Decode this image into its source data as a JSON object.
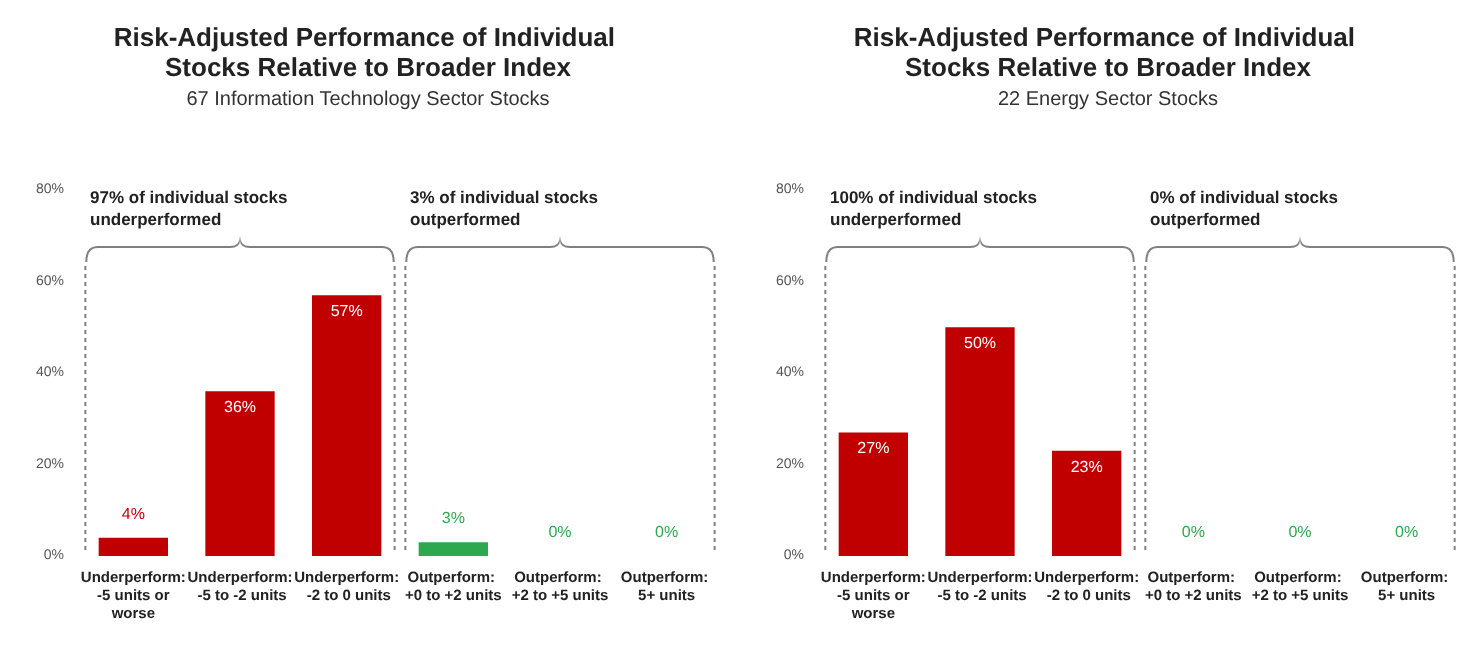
{
  "chart_data": [
    {
      "type": "bar",
      "title": "Risk-Adjusted Performance of Individual Stocks Relative to Broader Index",
      "subtitle": "67 Information Technology Sector Stocks",
      "categories": [
        "Underperform: -5 units or worse",
        "Underperform: -5 to -2 units",
        "Underperform: -2 to 0 units",
        "Outperform: +0 to +2 units",
        "Outperform: +2 to +5 units",
        "Outperform: 5+ units"
      ],
      "values": [
        4,
        36,
        57,
        3,
        0,
        0
      ],
      "colors": [
        "#c00000",
        "#c00000",
        "#c00000",
        "#2ea84f",
        "#2ea84f",
        "#2ea84f"
      ],
      "value_labels": [
        "4%",
        "36%",
        "57%",
        "3%",
        "0%",
        "0%"
      ],
      "ylim": [
        0,
        80
      ],
      "yticks": [
        {
          "value": 0,
          "label": "0%"
        },
        {
          "value": 20,
          "label": "20%"
        },
        {
          "value": 40,
          "label": "40%"
        },
        {
          "value": 60,
          "label": "60%"
        },
        {
          "value": 80,
          "label": "80%"
        }
      ],
      "grid": false,
      "annotations": [
        "97% of individual stocks underperformed",
        "3% of individual stocks outperformed"
      ]
    },
    {
      "type": "bar",
      "title": "Risk-Adjusted Performance of Individual Stocks Relative to Broader Index",
      "subtitle": "22 Energy Sector Stocks",
      "categories": [
        "Underperform: -5 units or worse",
        "Underperform: -5 to -2 units",
        "Underperform: -2 to 0 units",
        "Outperform: +0 to +2 units",
        "Outperform: +2 to +5 units",
        "Outperform: 5+ units"
      ],
      "values": [
        27,
        50,
        23,
        0,
        0,
        0
      ],
      "colors": [
        "#c00000",
        "#c00000",
        "#c00000",
        "#2ea84f",
        "#2ea84f",
        "#2ea84f"
      ],
      "value_labels": [
        "27%",
        "50%",
        "23%",
        "0%",
        "0%",
        "0%"
      ],
      "ylim": [
        0,
        80
      ],
      "yticks": [
        {
          "value": 0,
          "label": "0%"
        },
        {
          "value": 20,
          "label": "20%"
        },
        {
          "value": 40,
          "label": "40%"
        },
        {
          "value": 60,
          "label": "60%"
        },
        {
          "value": 80,
          "label": "80%"
        }
      ],
      "grid": false,
      "annotations": [
        "100% of individual stocks underperformed",
        "0% of individual stocks outperformed"
      ]
    }
  ]
}
